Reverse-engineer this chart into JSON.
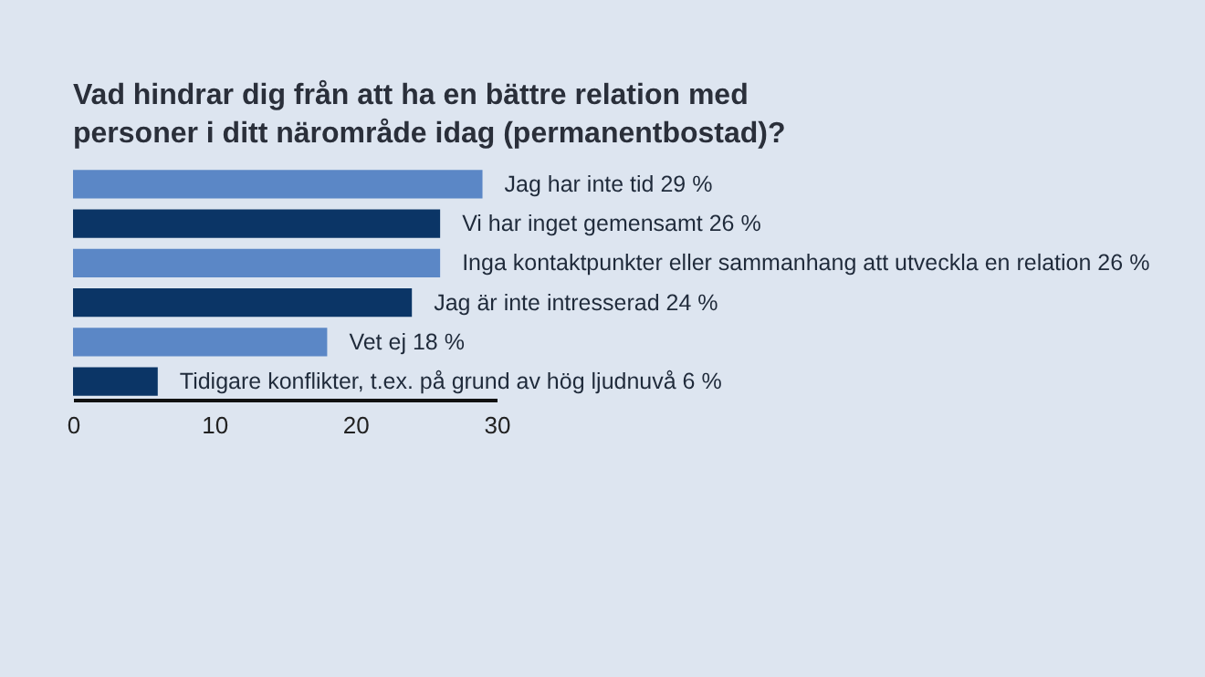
{
  "chart_data": {
    "type": "bar",
    "orientation": "horizontal",
    "title": [
      "Vad hindrar dig från att ha en bättre relation med",
      "personer i ditt närområde idag (permanentbostad)?"
    ],
    "categories": [
      "Jag har inte tid",
      "Vi har inget gemensamt",
      "Inga kontaktpunkter eller sammanhang att utveckla en relation",
      "Jag är inte intresserad",
      "Vet ej",
      "Tidigare konflikter, t.ex. på grund av hög ljudnuvå"
    ],
    "values": [
      29,
      26,
      26,
      24,
      18,
      6
    ],
    "colors": [
      "#5b87c6",
      "#0b3566",
      "#5b87c6",
      "#0b3566",
      "#5b87c6",
      "#0b3566"
    ],
    "value_labels": [
      "29 %",
      "26 %",
      "26 %",
      "24 %",
      "18 %",
      "6 %"
    ],
    "xlim": [
      0,
      30
    ],
    "xticks": [
      0,
      10,
      20,
      30
    ],
    "tick_labels": "x"
  }
}
